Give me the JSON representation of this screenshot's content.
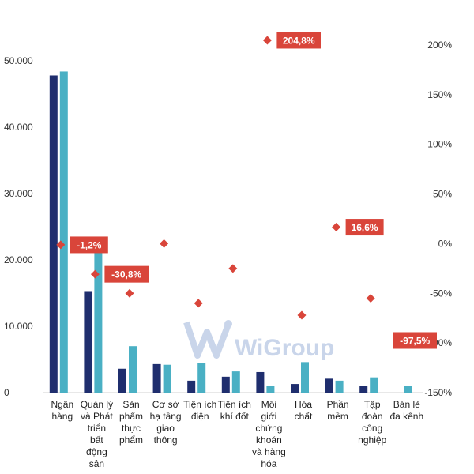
{
  "chart_data": {
    "type": "bar",
    "categories": [
      [
        "Ngân",
        "hàng"
      ],
      [
        "Quản lý",
        "và Phát",
        "triển",
        "bất",
        "động",
        "sản"
      ],
      [
        "Sản",
        "phẩm",
        "thực",
        "phẩm"
      ],
      [
        "Cơ sở",
        "hạ tầng",
        "giao",
        "thông"
      ],
      [
        "Tiện ích",
        "điện"
      ],
      [
        "Tiện ích",
        "khí đốt"
      ],
      [
        "Môi",
        "giới",
        "chứng",
        "khoán",
        "và hàng",
        "hóa"
      ],
      [
        "Hóa",
        "chất"
      ],
      [
        "Phần",
        "mềm"
      ],
      [
        "Tập",
        "đoàn",
        "công",
        "nghiệp"
      ],
      [
        "Bán lẻ",
        "đa kênh"
      ]
    ],
    "series": [
      {
        "values": [
          47800,
          15300,
          3600,
          4300,
          1800,
          2400,
          3100,
          1300,
          2100,
          1000,
          0
        ],
        "color": "#1f2e6e"
      },
      {
        "values": [
          48400,
          22000,
          7000,
          4200,
          4500,
          3200,
          1000,
          4600,
          1800,
          2300,
          1000
        ],
        "color": "#4ab0c4"
      },
      {
        "values": [
          -1.2,
          -30.8,
          -50,
          0,
          -60,
          -25,
          204.8,
          -72,
          16.6,
          -55,
          -97.5
        ],
        "color": "#d9453a",
        "axis": "right",
        "marker": "diamond"
      }
    ],
    "y_left": {
      "min": 0,
      "max": 50000,
      "ticks": [
        "0",
        "10.000",
        "20.000",
        "30.000",
        "40.000",
        "50.000"
      ]
    },
    "y_right": {
      "min": -150,
      "max": 200,
      "ticks": [
        "-150%",
        "-100%",
        "-50%",
        "0%",
        "50%",
        "100%",
        "150%",
        "200%"
      ]
    },
    "annotations": [
      "-1,2%",
      "-30,8%",
      "204,8%",
      "16,6%",
      "-97,5%"
    ],
    "watermark": "WiGroup"
  }
}
